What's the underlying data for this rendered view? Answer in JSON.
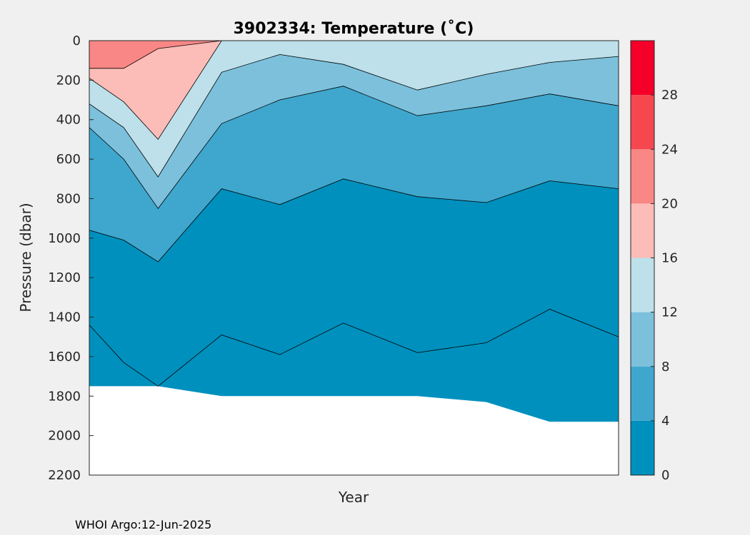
{
  "chart_data": {
    "type": "heatmap",
    "subtype": "filled-contour",
    "title": "3902334:  Temperature (˚C)",
    "xlabel": "Year",
    "ylabel": "Pressure (dbar)",
    "ylim": [
      2200,
      0
    ],
    "yticks": [
      "0",
      "200",
      "400",
      "600",
      "800",
      "1000",
      "1200",
      "1400",
      "1600",
      "1800",
      "2000",
      "2200"
    ],
    "y_reversed": true,
    "grid": false,
    "colorbar": {
      "range": [
        0,
        32
      ],
      "levels": [
        0,
        4,
        8,
        12,
        16,
        20,
        24,
        28,
        32
      ],
      "ticks": [
        "0",
        "4",
        "8",
        "12",
        "16",
        "20",
        "24",
        "28"
      ],
      "colors": [
        "#0090bd",
        "#3fa7cd",
        "#7cc0dc",
        "#bde0ea",
        "#fcbcb7",
        "#f98785",
        "#f6474f",
        "#f50029"
      ]
    },
    "profiles_x": [
      0,
      0.065,
      0.13,
      0.25,
      0.36,
      0.48,
      0.62,
      0.75,
      0.87,
      1.0
    ],
    "contours": [
      {
        "level": 20,
        "pressure": [
          140,
          140,
          40,
          0,
          0,
          0,
          0,
          0,
          0,
          0
        ]
      },
      {
        "level": 16,
        "pressure": [
          190,
          310,
          500,
          0,
          0,
          0,
          0,
          0,
          0,
          0
        ]
      },
      {
        "level": 12,
        "pressure": [
          320,
          440,
          690,
          160,
          70,
          120,
          250,
          170,
          110,
          80
        ]
      },
      {
        "level": 8,
        "pressure": [
          440,
          600,
          850,
          420,
          300,
          230,
          380,
          330,
          270,
          330
        ]
      },
      {
        "level": 4,
        "pressure": [
          960,
          1010,
          1120,
          750,
          830,
          700,
          790,
          820,
          710,
          750
        ]
      },
      {
        "level": 0,
        "pressure": [
          1440,
          1630,
          1750,
          1490,
          1590,
          1430,
          1580,
          1530,
          1360,
          1500
        ]
      }
    ],
    "max_pressure": [
      1750,
      1750,
      1750,
      1800,
      1800,
      1800,
      1800,
      1830,
      1930,
      1930
    ]
  },
  "footer": "WHOI Argo:12-Jun-2025"
}
